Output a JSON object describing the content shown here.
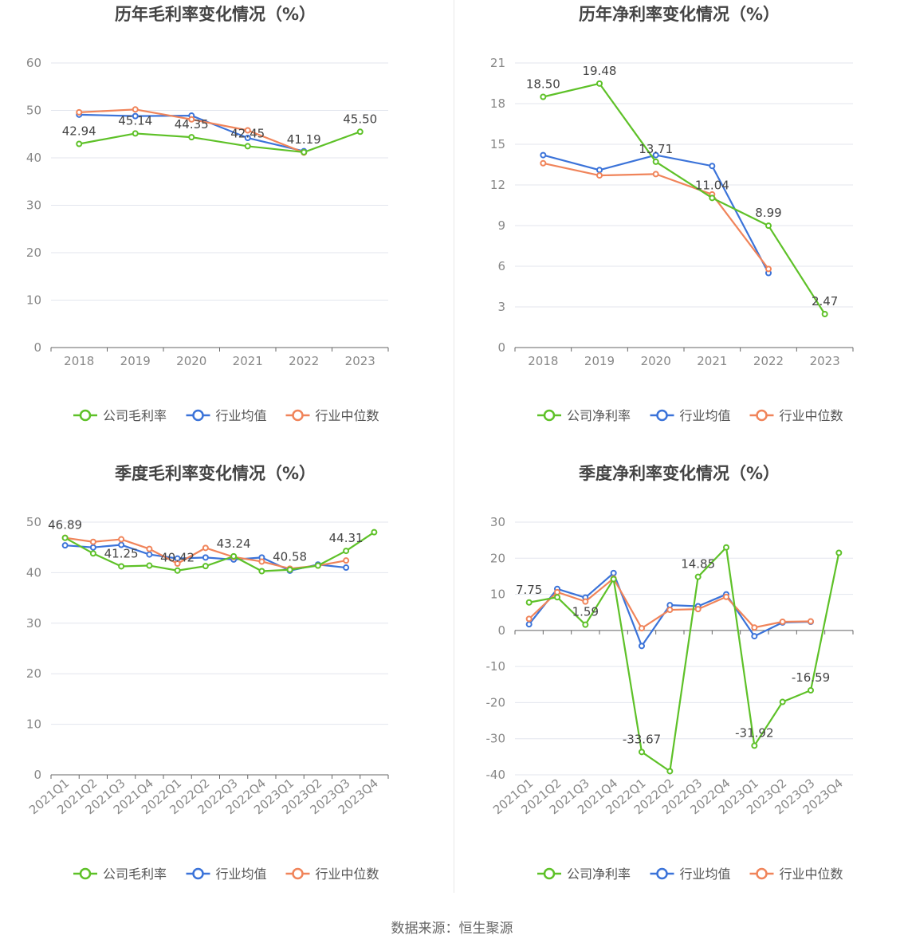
{
  "source_label": "数据来源：恒生聚源",
  "colors": {
    "company": "#5ec128",
    "avg": "#3b73d9",
    "median": "#f0845a",
    "grid": "#e3e6ee",
    "axis": "#666666"
  },
  "chart_data": [
    {
      "type": "line",
      "title": "历年毛利率变化情况（%）",
      "categories": [
        "2018",
        "2019",
        "2020",
        "2021",
        "2022",
        "2023"
      ],
      "ylim": [
        0,
        60
      ],
      "yticks": [
        0,
        10,
        20,
        30,
        40,
        50,
        60
      ],
      "rotate_x": false,
      "series": [
        {
          "key": "company",
          "name": "公司毛利率",
          "values": [
            42.94,
            45.14,
            44.35,
            42.45,
            41.19,
            45.5
          ],
          "labels": [
            "42.94",
            "45.14",
            "44.35",
            "42.45",
            "41.19",
            "45.50"
          ]
        },
        {
          "key": "avg",
          "name": "行业均值",
          "values": [
            49.1,
            48.8,
            48.9,
            44.2,
            41.4,
            null
          ]
        },
        {
          "key": "median",
          "name": "行业中位数",
          "values": [
            49.6,
            50.2,
            48.1,
            45.8,
            41.1,
            null
          ]
        }
      ]
    },
    {
      "type": "line",
      "title": "历年净利率变化情况（%）",
      "categories": [
        "2018",
        "2019",
        "2020",
        "2021",
        "2022",
        "2023"
      ],
      "ylim": [
        0,
        21
      ],
      "yticks": [
        0,
        3,
        6,
        9,
        12,
        15,
        18,
        21
      ],
      "rotate_x": false,
      "series": [
        {
          "key": "company",
          "name": "公司净利率",
          "values": [
            18.5,
            19.48,
            13.71,
            11.04,
            8.99,
            2.47
          ],
          "labels": [
            "18.50",
            "19.48",
            "13.71",
            "11.04",
            "8.99",
            "2.47"
          ]
        },
        {
          "key": "avg",
          "name": "行业均值",
          "values": [
            14.2,
            13.1,
            14.2,
            13.4,
            5.5,
            null
          ]
        },
        {
          "key": "median",
          "name": "行业中位数",
          "values": [
            13.6,
            12.7,
            12.8,
            11.3,
            5.8,
            null
          ]
        }
      ]
    },
    {
      "type": "line",
      "title": "季度毛利率变化情况（%）",
      "categories": [
        "2021Q1",
        "2021Q2",
        "2021Q3",
        "2021Q4",
        "2022Q1",
        "2022Q2",
        "2022Q3",
        "2022Q4",
        "2023Q1",
        "2023Q2",
        "2023Q3",
        "2023Q4"
      ],
      "ylim": [
        0,
        50
      ],
      "yticks": [
        0,
        10,
        20,
        30,
        40,
        50
      ],
      "rotate_x": true,
      "series": [
        {
          "key": "company",
          "name": "公司毛利率",
          "values": [
            46.89,
            43.8,
            41.25,
            41.4,
            40.42,
            41.3,
            43.24,
            40.3,
            40.58,
            41.4,
            44.31,
            48.0
          ],
          "labels": [
            "46.89",
            "",
            "41.25",
            "",
            "40.42",
            "",
            "43.24",
            "",
            "40.58",
            "",
            "44.31",
            ""
          ]
        },
        {
          "key": "avg",
          "name": "行业均值",
          "values": [
            45.4,
            45.0,
            45.5,
            43.6,
            42.8,
            43.0,
            42.6,
            43.0,
            40.4,
            41.6,
            41.0,
            null
          ]
        },
        {
          "key": "median",
          "name": "行业中位数",
          "values": [
            46.9,
            46.1,
            46.6,
            44.7,
            41.8,
            44.9,
            43.1,
            42.2,
            40.8,
            41.4,
            42.4,
            null
          ]
        }
      ]
    },
    {
      "type": "line",
      "title": "季度净利率变化情况（%）",
      "categories": [
        "2021Q1",
        "2021Q2",
        "2021Q3",
        "2021Q4",
        "2022Q1",
        "2022Q2",
        "2022Q3",
        "2022Q4",
        "2023Q1",
        "2023Q2",
        "2023Q3",
        "2023Q4"
      ],
      "ylim": [
        -40,
        30
      ],
      "yticks": [
        -40,
        -30,
        -20,
        -10,
        0,
        10,
        20,
        30
      ],
      "rotate_x": true,
      "series": [
        {
          "key": "company",
          "name": "公司净利率",
          "values": [
            7.75,
            9.2,
            1.59,
            14.2,
            -33.67,
            -39.0,
            14.85,
            23.0,
            -31.92,
            -19.8,
            -16.59,
            21.5
          ],
          "labels": [
            "7.75",
            "",
            "1.59",
            "",
            "-33.67",
            "",
            "14.85",
            "",
            "-31.92",
            "",
            "-16.59",
            ""
          ]
        },
        {
          "key": "avg",
          "name": "行业均值",
          "values": [
            1.7,
            11.5,
            9.1,
            15.9,
            -4.3,
            7.0,
            6.7,
            10.0,
            -1.6,
            2.2,
            2.4,
            null
          ]
        },
        {
          "key": "median",
          "name": "行业中位数",
          "values": [
            3.2,
            10.6,
            8.0,
            14.4,
            0.6,
            5.7,
            5.9,
            9.3,
            0.8,
            2.4,
            2.5,
            null
          ]
        }
      ]
    }
  ]
}
